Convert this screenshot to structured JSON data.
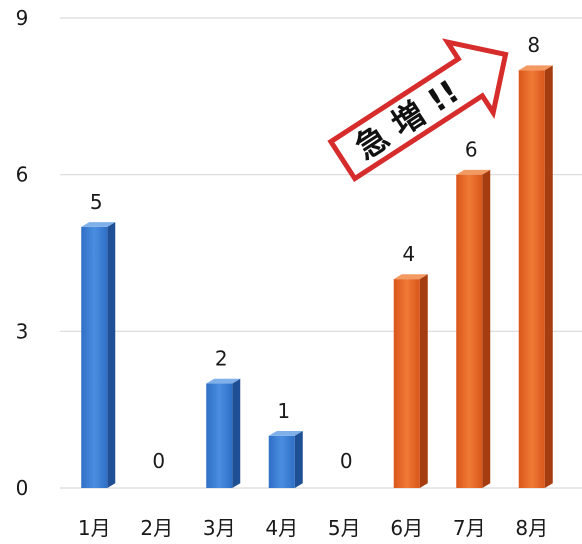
{
  "chart_data": {
    "type": "bar",
    "categories": [
      "1月",
      "2月",
      "3月",
      "4月",
      "5月",
      "6月",
      "7月",
      "8月"
    ],
    "values": [
      5,
      0,
      2,
      1,
      0,
      4,
      6,
      8
    ],
    "bar_colors": [
      "#3a7bd5",
      "#3a7bd5",
      "#3a7bd5",
      "#3a7bd5",
      "#3a7bd5",
      "#e8621f",
      "#e8621f",
      "#e8621f"
    ],
    "ylim": [
      0,
      9
    ],
    "yticks": [
      0,
      3,
      6,
      9
    ],
    "grid": true,
    "title": "",
    "xlabel": "",
    "ylabel": ""
  },
  "annotation": {
    "text": "急 増 !!",
    "shape": "arrow",
    "border_color": "#d62c2c"
  }
}
